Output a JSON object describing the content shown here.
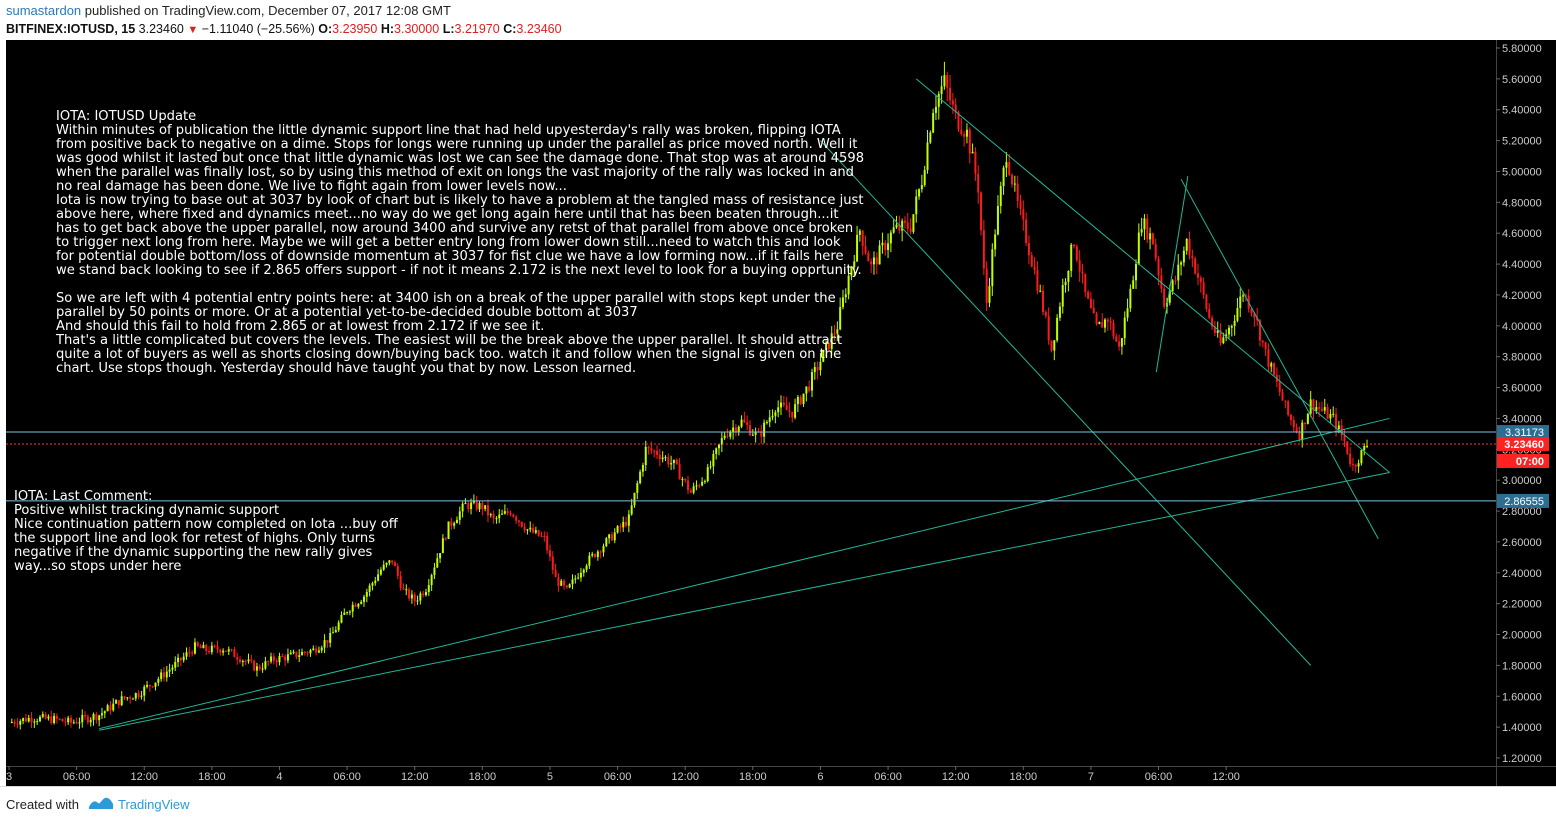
{
  "header": {
    "author": "sumastardon",
    "published": "published on TradingView.com, December 07, 2017 12:08 GMT",
    "symbol": "BITFINEX:IOTUSD, 15",
    "last": "3.23460",
    "change": "−1.11040 (−25.56%)",
    "o_label": "O:",
    "o": "3.23950",
    "h_label": "H:",
    "h": "3.30000",
    "l_label": "L:",
    "l": "3.21970",
    "c_label": "C:",
    "c": "3.23460"
  },
  "colors": {
    "background": "#000000",
    "candle_up": "#bfff00",
    "candle_down": "#ff1a1a",
    "trendline": "#1fb89a",
    "price_line": "#ff3333",
    "level_line": "#7fc3dc",
    "axis_label_bg_blue": "#2c6e91",
    "axis_label_bg_red": "#ff2222"
  },
  "note1": {
    "lines": [
      "IOTA: IOTUSD  Update",
      "Within minutes of publication the little dynamic support line that had held upyesterday's rally was broken, flipping IOTA",
      "from positive back to negative on a dime. Stops for longs were running up under the parallel as price moved north. Well it",
      "was good whilst it lasted but once that little dynamic was lost we can see the damage done. That stop was at around 4598",
      "when the parallel was finally lost, so by using this method of exit on longs the vast majority of the rally was locked in and",
      "no real damage has been done. We live to fight again from lower levels now...",
      "Iota is now trying to base out at 3037 by look of chart but is likely to have a problem at the tangled mass of resistance just",
      "above here, where fixed and dynamics meet...no way do we get long again here until that has been beaten through...it",
      "has to get back above the upper parallel, now around 3400 and survive any retst of that parallel from above once broken",
      "to trigger next long from here. Maybe we will get a better entry long from lower down still...need to watch this and look",
      "for potential double bottom/loss of downside momentum at 3037 for fist clue we have a low forming now...if it fails here",
      "we stand back looking to see if 2.865 offers support - if not it means 2.172 is the next level to look for a buying opprtunity.",
      "",
      "So we are left with 4 potential entry points here: at 3400 ish on a break of the upper parallel with stops kept under the",
      "parallel by 50 points or more. Or at a potential yet-to-be-decided double bottom at 3037",
      "And should this fail to hold from 2.865 or at lowest from 2.172 if we see it.",
      "That's a little complicated but covers the levels. The easiest will be the break above the upper parallel. It should attract",
      "quite a lot of buyers as well as shorts closing down/buying back too. watch it and follow when the signal is given on the",
      "chart. Use stops though. Yesterday should have taught you that by now. Lesson learned."
    ]
  },
  "note2": {
    "lines": [
      "IOTA: Last Comment:",
      "Positive whilst tracking dynamic support",
      "Nice continuation pattern now completed on Iota ...buy off",
      "the support line and look for retest of highs. Only turns",
      "negative if the dynamic supporting the new rally gives",
      "way...so stops under here"
    ]
  },
  "chart_data": {
    "type": "candlestick",
    "symbol": "BITFINEX:IOTUSD",
    "interval": "15",
    "ylim": [
      1.2,
      5.8
    ],
    "y_ticks": [
      "5.80000",
      "5.60000",
      "5.40000",
      "5.20000",
      "5.00000",
      "4.80000",
      "4.60000",
      "4.40000",
      "4.20000",
      "4.00000",
      "3.80000",
      "3.60000",
      "3.40000",
      "3.20000",
      "3.00000",
      "2.80000",
      "2.60000",
      "2.40000",
      "2.20000",
      "2.00000",
      "1.80000",
      "1.60000",
      "1.40000",
      "1.20000"
    ],
    "x_ticks": [
      "3",
      "06:00",
      "12:00",
      "18:00",
      "4",
      "06:00",
      "12:00",
      "18:00",
      "5",
      "06:00",
      "12:00",
      "18:00",
      "6",
      "06:00",
      "12:00",
      "18:00",
      "7",
      "06:00",
      "12:00"
    ],
    "price_markers": [
      {
        "label": "3.31173",
        "value": 3.31173,
        "style": "level"
      },
      {
        "label": "3.23460",
        "value": 3.2346,
        "style": "last"
      },
      {
        "label": "07:00",
        "value": 3.1,
        "style": "countdown"
      },
      {
        "label": "2.86555",
        "value": 2.86555,
        "style": "level"
      }
    ],
    "horizontal_levels": [
      3.31173,
      2.86555
    ],
    "close_path": [
      {
        "t": 0,
        "v": 1.43
      },
      {
        "t": 2,
        "v": 1.46
      },
      {
        "t": 4,
        "v": 1.45
      },
      {
        "t": 5.5,
        "v": 1.43
      },
      {
        "t": 6.5,
        "v": 1.45
      },
      {
        "t": 8,
        "v": 1.48
      },
      {
        "t": 10,
        "v": 1.58
      },
      {
        "t": 11.5,
        "v": 1.62
      },
      {
        "t": 13,
        "v": 1.7
      },
      {
        "t": 15,
        "v": 1.82
      },
      {
        "t": 16.5,
        "v": 1.92
      },
      {
        "t": 17.5,
        "v": 1.9
      },
      {
        "t": 19,
        "v": 1.91
      },
      {
        "t": 20.5,
        "v": 1.85
      },
      {
        "t": 22,
        "v": 1.78
      },
      {
        "t": 23.5,
        "v": 1.84
      },
      {
        "t": 25,
        "v": 1.86
      },
      {
        "t": 27,
        "v": 1.9
      },
      {
        "t": 28.5,
        "v": 1.98
      },
      {
        "t": 30,
        "v": 2.16
      },
      {
        "t": 31.5,
        "v": 2.25
      },
      {
        "t": 33,
        "v": 2.42
      },
      {
        "t": 34,
        "v": 2.48
      },
      {
        "t": 35,
        "v": 2.28
      },
      {
        "t": 36,
        "v": 2.22
      },
      {
        "t": 37,
        "v": 2.3
      },
      {
        "t": 39,
        "v": 2.7
      },
      {
        "t": 40.5,
        "v": 2.84
      },
      {
        "t": 42,
        "v": 2.83
      },
      {
        "t": 43,
        "v": 2.74
      },
      {
        "t": 44.5,
        "v": 2.8
      },
      {
        "t": 46,
        "v": 2.68
      },
      {
        "t": 47.5,
        "v": 2.62
      },
      {
        "t": 48.5,
        "v": 2.36
      },
      {
        "t": 49.5,
        "v": 2.28
      },
      {
        "t": 51,
        "v": 2.45
      },
      {
        "t": 53,
        "v": 2.6
      },
      {
        "t": 55,
        "v": 2.75
      },
      {
        "t": 56.5,
        "v": 3.2
      },
      {
        "t": 57.5,
        "v": 3.18
      },
      {
        "t": 59,
        "v": 3.1
      },
      {
        "t": 60.5,
        "v": 2.92
      },
      {
        "t": 62,
        "v": 3.05
      },
      {
        "t": 63.5,
        "v": 3.3
      },
      {
        "t": 65,
        "v": 3.38
      },
      {
        "t": 66.5,
        "v": 3.28
      },
      {
        "t": 68,
        "v": 3.48
      },
      {
        "t": 69.5,
        "v": 3.44
      },
      {
        "t": 71,
        "v": 3.62
      },
      {
        "t": 72.5,
        "v": 3.85
      },
      {
        "t": 73.5,
        "v": 4.0
      },
      {
        "t": 74.5,
        "v": 4.32
      },
      {
        "t": 75.5,
        "v": 4.62
      },
      {
        "t": 76.5,
        "v": 4.38
      },
      {
        "t": 77.5,
        "v": 4.5
      },
      {
        "t": 78.5,
        "v": 4.62
      },
      {
        "t": 80,
        "v": 4.65
      },
      {
        "t": 81,
        "v": 4.95
      },
      {
        "t": 82,
        "v": 5.42
      },
      {
        "t": 83,
        "v": 5.58
      },
      {
        "t": 84,
        "v": 5.35
      },
      {
        "t": 85,
        "v": 5.25
      },
      {
        "t": 86,
        "v": 4.9
      },
      {
        "t": 86.7,
        "v": 4.12
      },
      {
        "t": 87.5,
        "v": 4.62
      },
      {
        "t": 88.5,
        "v": 5.12
      },
      {
        "t": 89.5,
        "v": 4.78
      },
      {
        "t": 90.5,
        "v": 4.5
      },
      {
        "t": 91.5,
        "v": 4.2
      },
      {
        "t": 92.5,
        "v": 3.85
      },
      {
        "t": 93.5,
        "v": 4.25
      },
      {
        "t": 94.5,
        "v": 4.55
      },
      {
        "t": 95.5,
        "v": 4.2
      },
      {
        "t": 96.5,
        "v": 3.98
      },
      {
        "t": 97.5,
        "v": 4.05
      },
      {
        "t": 98.5,
        "v": 3.85
      },
      {
        "t": 99.5,
        "v": 4.22
      },
      {
        "t": 100.5,
        "v": 4.68
      },
      {
        "t": 101.5,
        "v": 4.55
      },
      {
        "t": 102.5,
        "v": 4.15
      },
      {
        "t": 103.5,
        "v": 4.3
      },
      {
        "t": 104.5,
        "v": 4.55
      },
      {
        "t": 105.5,
        "v": 4.32
      },
      {
        "t": 106.5,
        "v": 4.05
      },
      {
        "t": 107.5,
        "v": 3.88
      },
      {
        "t": 108.5,
        "v": 4.02
      },
      {
        "t": 109.5,
        "v": 4.22
      },
      {
        "t": 110.5,
        "v": 4.08
      },
      {
        "t": 111.5,
        "v": 3.82
      },
      {
        "t": 112.5,
        "v": 3.62
      },
      {
        "t": 113.5,
        "v": 3.42
      },
      {
        "t": 114.5,
        "v": 3.3
      },
      {
        "t": 115.5,
        "v": 3.5
      },
      {
        "t": 116.5,
        "v": 3.45
      },
      {
        "t": 117.5,
        "v": 3.4
      },
      {
        "t": 118.5,
        "v": 3.25
      },
      {
        "t": 119.2,
        "v": 3.08
      },
      {
        "t": 119.8,
        "v": 3.15
      },
      {
        "t": 120.5,
        "v": 3.23
      }
    ],
    "trendlines": [
      {
        "t1": 8,
        "v1": 1.39,
        "t2": 122.5,
        "v2": 3.4
      },
      {
        "t1": 8,
        "v1": 1.38,
        "t2": 122.5,
        "v2": 3.05
      },
      {
        "t1": 80.5,
        "v1": 5.6,
        "t2": 122.5,
        "v2": 3.05
      },
      {
        "t1": 72,
        "v1": 5.2,
        "t2": 115.5,
        "v2": 1.8
      },
      {
        "t1": 104,
        "v1": 4.95,
        "t2": 121.5,
        "v2": 2.62
      },
      {
        "t1": 101.8,
        "v1": 3.7,
        "t2": 104.6,
        "v2": 4.97
      }
    ]
  },
  "footer": {
    "created_with": "Created with",
    "brand": "TradingView"
  }
}
